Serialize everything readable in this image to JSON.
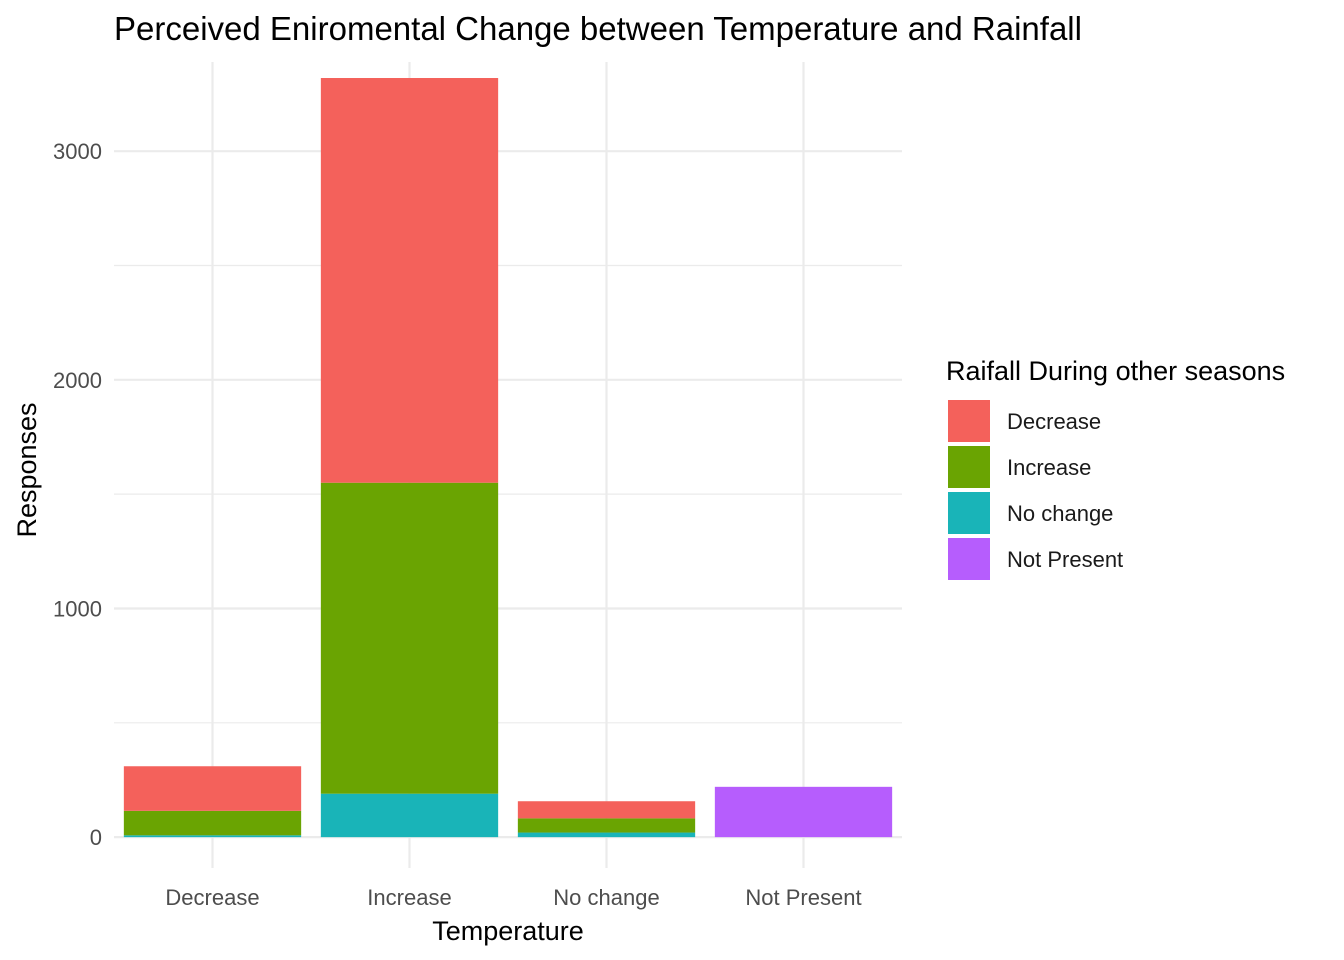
{
  "chart_data": {
    "type": "bar",
    "stacked": true,
    "title": "Perceived Eniromental Change between Temperature and Rainfall",
    "xlabel": "Temperature",
    "ylabel": "Responses",
    "categories": [
      "Decrease",
      "Increase",
      "No change",
      "Not Present"
    ],
    "ylim": [
      -135,
      3390
    ],
    "yticks": [
      0,
      1000,
      2000,
      3000
    ],
    "grid": true,
    "legend_position": "right",
    "legend_title": "Raifall During other seasons",
    "series": [
      {
        "name": "No change",
        "color": "#19b4b8",
        "values": [
          8,
          190,
          20,
          0
        ]
      },
      {
        "name": "Increase",
        "color": "#6aa402",
        "values": [
          107,
          1360,
          62,
          0
        ]
      },
      {
        "name": "Decrease",
        "color": "#f4615b",
        "values": [
          195,
          1770,
          75,
          0
        ]
      },
      {
        "name": "Not Present",
        "color": "#b65dfd",
        "values": [
          0,
          0,
          0,
          220
        ]
      }
    ],
    "legend_order": [
      "Decrease",
      "Increase",
      "No change",
      "Not Present"
    ]
  }
}
